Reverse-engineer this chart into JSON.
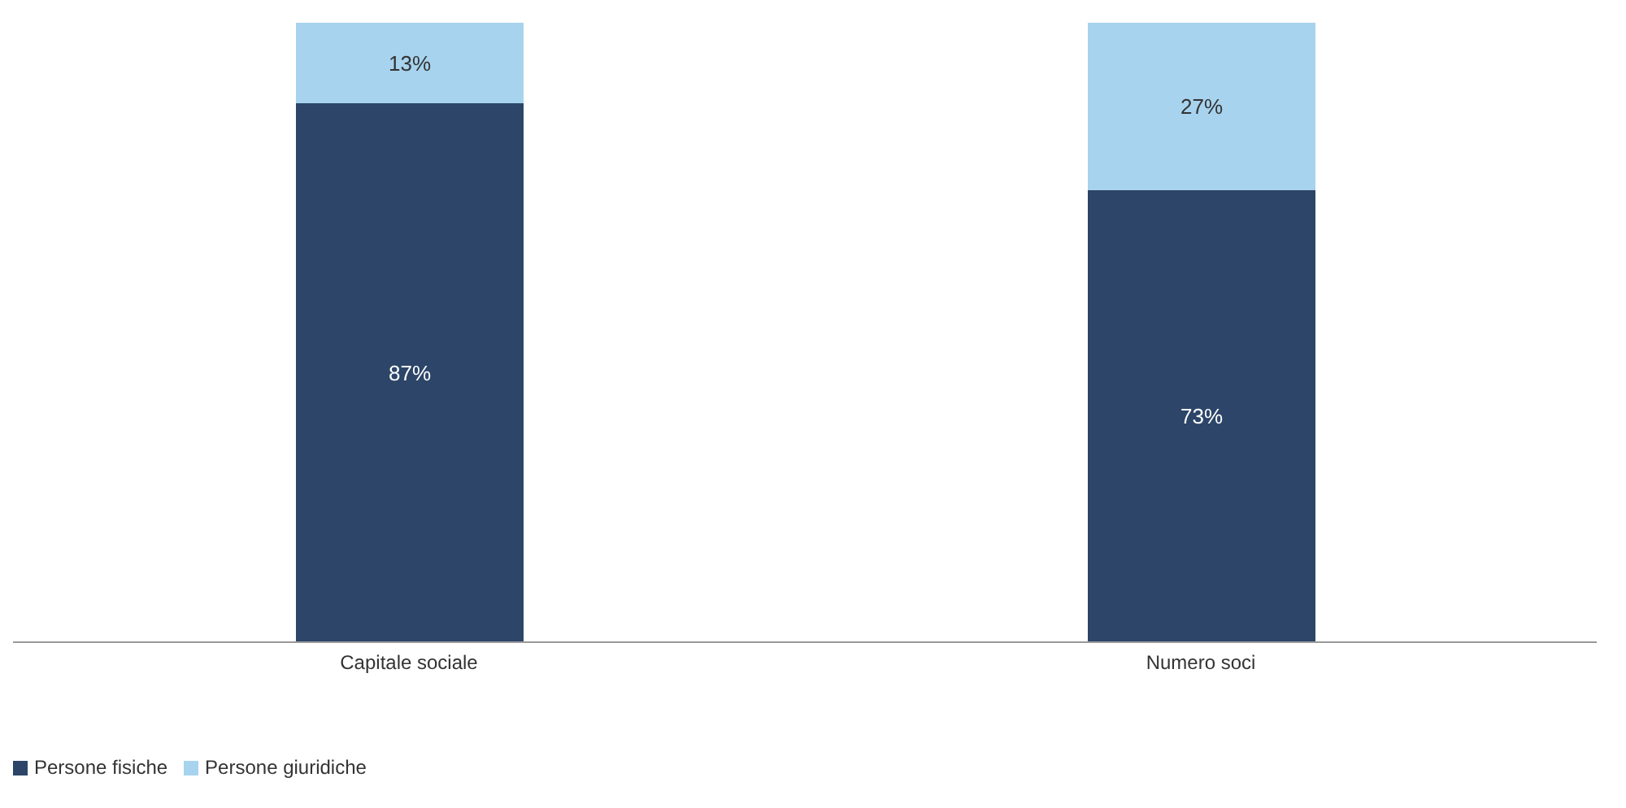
{
  "chart_data": {
    "type": "bar",
    "stacked": true,
    "categories": [
      "Capitale sociale",
      "Numero soci"
    ],
    "series": [
      {
        "name": "Persone fisiche",
        "color": "#2c4568",
        "values": [
          87,
          73
        ],
        "value_labels": [
          "87%",
          "73%"
        ]
      },
      {
        "name": "Persone giuridiche",
        "color": "#a7d3ee",
        "values": [
          13,
          27
        ],
        "value_labels": [
          "13%",
          "27%"
        ]
      }
    ],
    "legend": "bottom left",
    "grid": false
  }
}
